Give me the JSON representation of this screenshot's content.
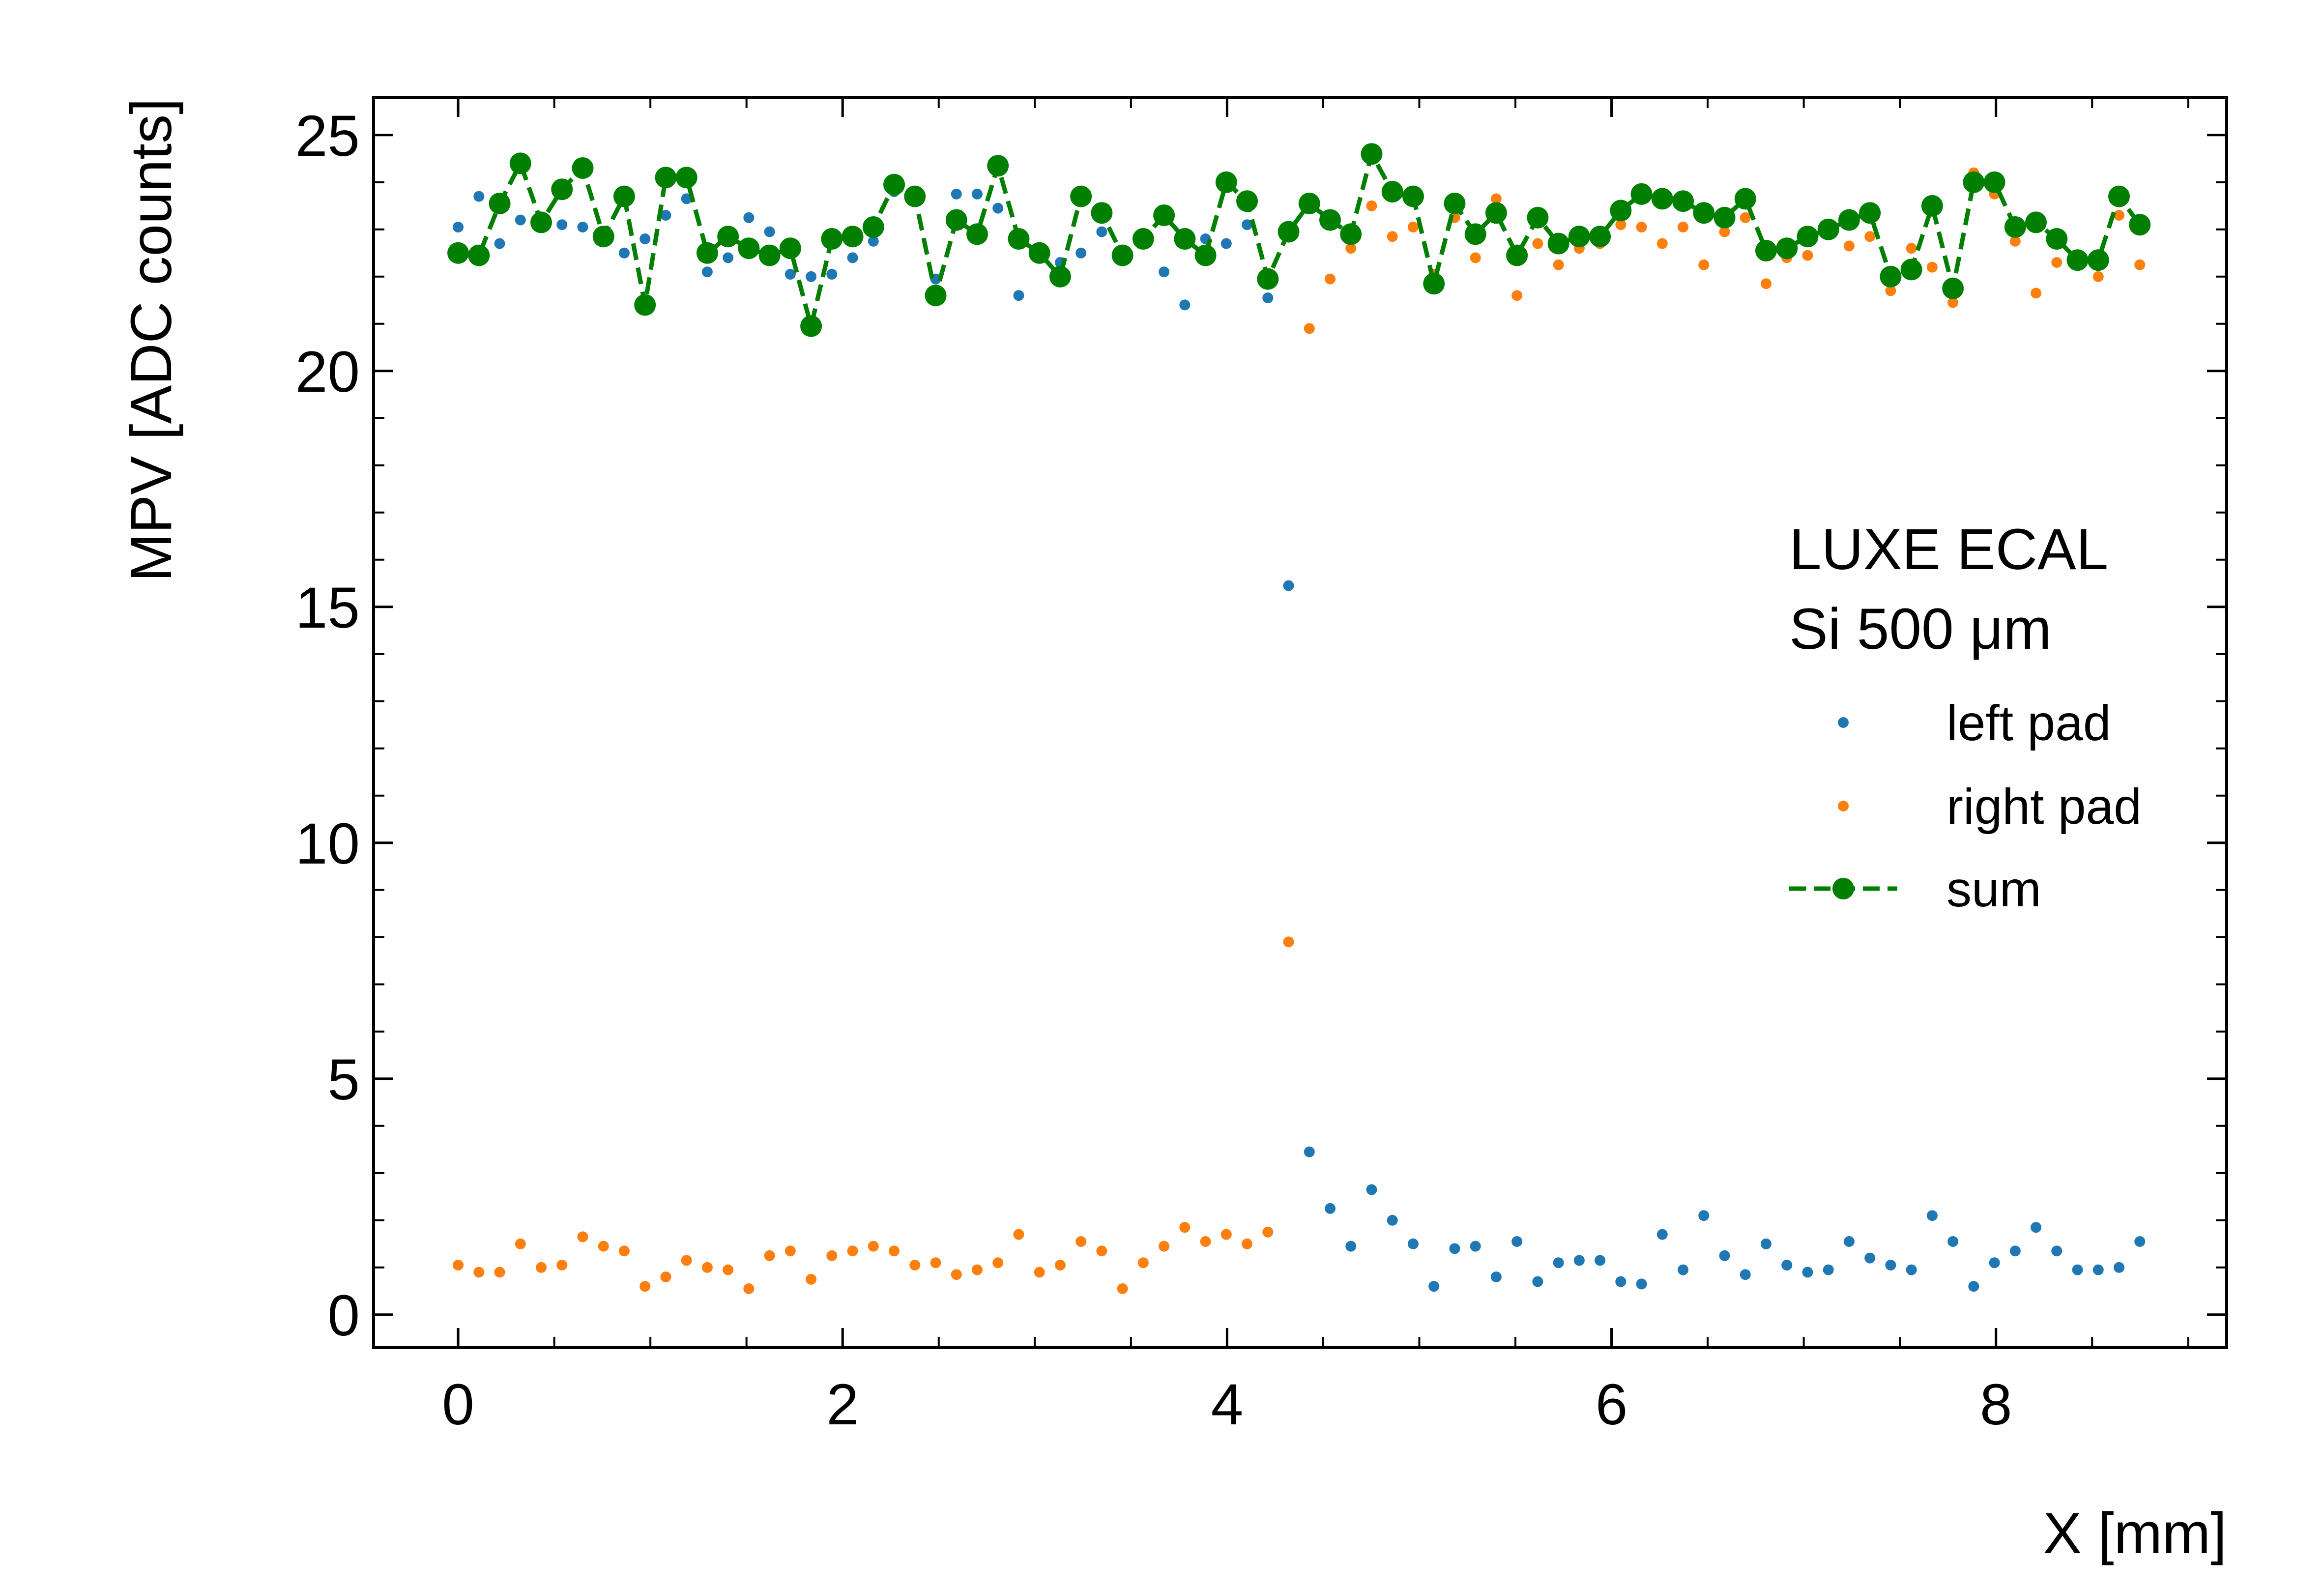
{
  "chart_data": {
    "type": "scatter",
    "xlabel": "X [mm]",
    "ylabel": "MPV [ADC counts]",
    "xlim": [
      -0.44,
      9.2
    ],
    "ylim": [
      -0.7,
      25.8
    ],
    "xticks": [
      0,
      2,
      4,
      6,
      8
    ],
    "xtick_labels": [
      "0",
      "2",
      "4",
      "6",
      "8"
    ],
    "yticks": [
      0,
      5,
      10,
      15,
      20,
      25
    ],
    "ytick_labels": [
      "0",
      "5",
      "10",
      "15",
      "20",
      "25"
    ],
    "grid": false,
    "legend": {
      "placement": "right",
      "header_lines": [
        "LUXE ECAL",
        "Si 500 μm"
      ],
      "entries": [
        "left pad",
        "right pad",
        "sum"
      ]
    },
    "x": [
      0,
      0.108,
      0.216,
      0.324,
      0.432,
      0.54,
      0.648,
      0.756,
      0.864,
      0.972,
      1.08,
      1.188,
      1.296,
      1.404,
      1.512,
      1.62,
      1.728,
      1.836,
      1.944,
      2.052,
      2.16,
      2.268,
      2.376,
      2.484,
      2.592,
      2.7,
      2.808,
      2.916,
      3.024,
      3.132,
      3.24,
      3.348,
      3.456,
      3.564,
      3.672,
      3.78,
      3.888,
      3.996,
      4.104,
      4.212,
      4.32,
      4.428,
      4.536,
      4.644,
      4.752,
      4.86,
      4.968,
      5.076,
      5.184,
      5.292,
      5.4,
      5.508,
      5.616,
      5.724,
      5.832,
      5.94,
      6.048,
      6.156,
      6.264,
      6.372,
      6.48,
      6.588,
      6.696,
      6.804,
      6.912,
      7.02,
      7.128,
      7.236,
      7.344,
      7.452,
      7.56,
      7.668,
      7.776,
      7.884,
      7.992,
      8.1,
      8.208,
      8.316,
      8.424,
      8.532,
      8.64,
      8.748
    ],
    "series": [
      {
        "name": "left pad",
        "color": "#1f77b4",
        "marker": "small-dot",
        "values": [
          23.05,
          23.7,
          22.7,
          23.2,
          23.2,
          23.1,
          23.05,
          22.9,
          22.5,
          22.8,
          23.3,
          23.65,
          22.1,
          22.4,
          23.25,
          22.95,
          22.05,
          22.0,
          22.05,
          22.4,
          22.75,
          23.8,
          23.65,
          21.95,
          23.75,
          23.75,
          23.45,
          21.6,
          22.55,
          22.3,
          22.5,
          22.95,
          22.4,
          22.75,
          22.1,
          21.4,
          22.8,
          22.7,
          23.1,
          21.55,
          15.45,
          3.45,
          2.25,
          1.45,
          2.65,
          2.0,
          1.5,
          0.6,
          1.4,
          1.45,
          0.8,
          1.55,
          0.7,
          1.1,
          1.15,
          1.15,
          0.7,
          0.65,
          1.7,
          0.95,
          2.1,
          1.25,
          0.85,
          1.5,
          1.05,
          0.9,
          0.95,
          1.55,
          1.2,
          1.05,
          0.95,
          2.1,
          1.55,
          0.6,
          1.1,
          1.35,
          1.85,
          1.35,
          0.95,
          0.95,
          1.0,
          1.55
        ]
      },
      {
        "name": "right pad",
        "color": "#ff7f0e",
        "marker": "small-dot",
        "values": [
          1.05,
          0.9,
          0.9,
          1.5,
          1.0,
          1.05,
          1.65,
          1.45,
          1.35,
          0.6,
          0.8,
          1.15,
          1.0,
          0.95,
          0.55,
          1.25,
          1.35,
          0.75,
          1.25,
          1.35,
          1.45,
          1.35,
          1.05,
          1.1,
          0.85,
          0.95,
          1.1,
          1.7,
          0.9,
          1.05,
          1.55,
          1.35,
          0.55,
          1.1,
          1.45,
          1.85,
          1.55,
          1.7,
          1.5,
          1.75,
          7.9,
          20.9,
          21.95,
          22.6,
          23.5,
          22.85,
          23.05,
          22.05,
          23.25,
          22.4,
          23.65,
          21.6,
          22.7,
          22.25,
          22.6,
          22.7,
          23.1,
          23.05,
          22.7,
          23.05,
          22.25,
          22.95,
          23.25,
          21.85,
          22.4,
          22.45,
          22.9,
          22.65,
          22.85,
          21.7,
          22.6,
          22.2,
          21.45,
          24.2,
          23.75,
          22.75,
          21.65,
          22.3,
          22.3,
          22.0,
          23.3,
          22.25
        ]
      },
      {
        "name": "sum",
        "color": "#007f00",
        "marker": "large-dot",
        "line": "dashed",
        "values": [
          22.5,
          22.45,
          23.55,
          24.4,
          23.15,
          23.85,
          24.3,
          22.85,
          23.7,
          21.4,
          24.1,
          24.1,
          22.5,
          22.85,
          22.6,
          22.45,
          22.6,
          20.95,
          22.8,
          22.85,
          23.05,
          23.95,
          23.7,
          21.6,
          23.2,
          22.9,
          24.35,
          22.8,
          22.5,
          22.0,
          23.7,
          23.35,
          22.45,
          22.8,
          23.3,
          22.8,
          22.45,
          24.0,
          23.6,
          21.95,
          22.95,
          23.55,
          23.2,
          22.9,
          24.6,
          23.8,
          23.7,
          21.85,
          23.55,
          22.9,
          23.35,
          22.45,
          23.25,
          22.7,
          22.85,
          22.85,
          23.4,
          23.75,
          23.65,
          23.6,
          23.35,
          23.25,
          23.65,
          22.55,
          22.6,
          22.85,
          23.0,
          23.2,
          23.35,
          22.0,
          22.15,
          23.5,
          21.75,
          24.0,
          24.0,
          23.05,
          23.15,
          22.8,
          22.35,
          22.35,
          23.7,
          23.1
        ]
      }
    ]
  }
}
